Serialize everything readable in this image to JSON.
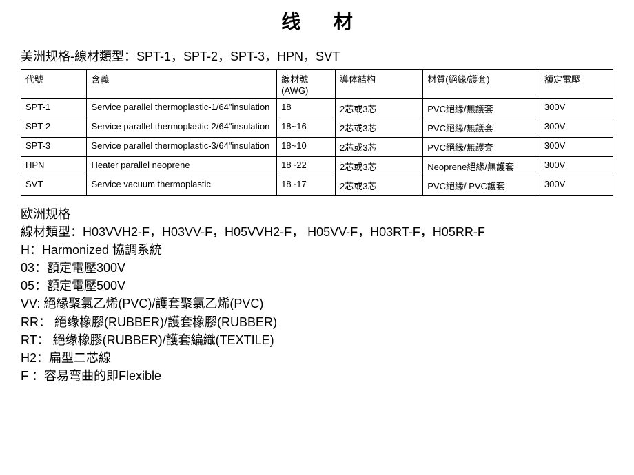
{
  "title": "线   材",
  "america": {
    "label_cn": "美洲规格-線材類型：",
    "types": "SPT-1，SPT-2，SPT-3，HPN，SVT"
  },
  "table": {
    "headers": {
      "code": "代號",
      "meaning": "含義",
      "awg": "線材號(AWG)",
      "conductor": "導体結构",
      "material": "材質(絕緣/護套)",
      "voltage": "額定電壓"
    },
    "rows": [
      {
        "code": "SPT-1",
        "meaning": "Service parallel thermoplastic-1/64\"insulation",
        "awg": "18",
        "conductor": "2芯或3芯",
        "material": "PVC絕緣/無護套",
        "voltage": "300V"
      },
      {
        "code": "SPT-2",
        "meaning": "Service parallel thermoplastic-2/64\"insulation",
        "awg": "18~16",
        "conductor": "2芯或3芯",
        "material": "PVC絕緣/無護套",
        "voltage": "300V"
      },
      {
        "code": "SPT-3",
        "meaning": "Service parallel thermoplastic-3/64\"insulation",
        "awg": "18~10",
        "conductor": "2芯或3芯",
        "material": "PVC絕緣/無護套",
        "voltage": "300V"
      },
      {
        "code": "HPN",
        "meaning": "Heater parallel neoprene",
        "awg": "18~22",
        "conductor": "2芯或3芯",
        "material": "Neoprene絕緣/無護套",
        "voltage": "300V"
      },
      {
        "code": "SVT",
        "meaning": "Service vacuum thermoplastic",
        "awg": "18~17",
        "conductor": "2芯或3芯",
        "material": "PVC絕緣/ PVC護套",
        "voltage": "300V"
      }
    ]
  },
  "europe": {
    "heading": "欧洲规格",
    "types_label": "線材類型：",
    "types": "H03VVH2-F，H03VV-F，H05VVH2-F， H05VV-F，H03RT-F，H05RR-F",
    "lines": [
      "H：Harmonized 協調系統",
      "03：額定電壓300V",
      "05：額定電壓500V",
      "VV:  絕緣聚氯乙烯(PVC)/護套聚氯乙烯(PVC)",
      "RR： 絕缘橡膠(RUBBER)/護套橡膠(RUBBER)",
      "RT： 絕缘橡膠(RUBBER)/護套編織(TEXTILE)",
      "H2：扁型二芯線",
      "F ：容易弯曲的即Flexible"
    ]
  }
}
